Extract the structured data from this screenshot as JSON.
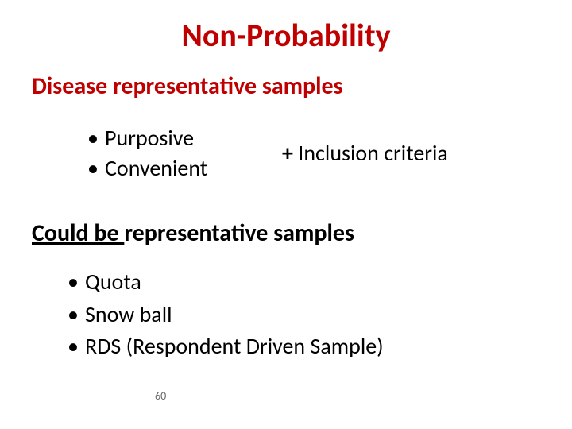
{
  "colors": {
    "title_color": "#c00000",
    "section_heading_color": "#c00000",
    "body_text_color": "#000000",
    "page_number_color": "#6a6a6a",
    "background": "#ffffff"
  },
  "typography": {
    "title_fontsize": 40,
    "heading_fontsize": 30,
    "body_fontsize": 28,
    "pagenum_fontsize": 14,
    "weight_bold": 700
  },
  "title": "Non-Probability",
  "section1": {
    "heading": "Disease representative samples",
    "items": [
      "Purposive",
      "Convenient"
    ],
    "side_note_plus": "+",
    "side_note_text": " Inclusion criteria"
  },
  "section2": {
    "heading_underlined": "Could be ",
    "heading_rest": "representative samples",
    "items": [
      "Quota",
      "Snow ball",
      "RDS (Respondent Driven Sample)"
    ]
  },
  "page_number": "60",
  "bullet_char": "•"
}
